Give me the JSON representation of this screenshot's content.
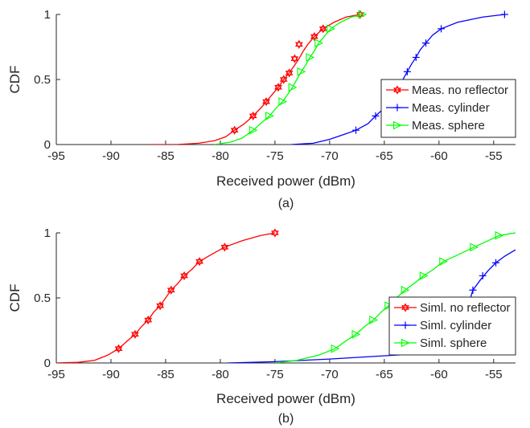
{
  "chart_data": [
    {
      "type": "line",
      "caption": "(a)",
      "xlabel": "Received power (dBm)",
      "ylabel": "CDF",
      "xlim": [
        -95,
        -53
      ],
      "ylim": [
        0,
        1
      ],
      "xticks": [
        -95,
        -90,
        -85,
        -80,
        -75,
        -70,
        -65,
        -60,
        -55
      ],
      "yticks": [
        0,
        0.5,
        1
      ],
      "yticklabels": [
        "0",
        "0.5",
        "1"
      ],
      "grid": false,
      "legend_position": "right",
      "series": [
        {
          "name": "Meas. no reflector",
          "color": "#ff0000",
          "marker": "hexagram",
          "points": [
            [
              -86.5,
              0.0
            ],
            [
              -84.0,
              0.0
            ],
            [
              -82.0,
              0.01
            ],
            [
              -80.5,
              0.03
            ],
            [
              -79.5,
              0.06
            ],
            [
              -78.7,
              0.11
            ],
            [
              -77.8,
              0.16
            ],
            [
              -77.0,
              0.22
            ],
            [
              -76.3,
              0.28
            ],
            [
              -75.8,
              0.33
            ],
            [
              -75.2,
              0.39
            ],
            [
              -74.7,
              0.44
            ],
            [
              -74.2,
              0.5
            ],
            [
              -73.7,
              0.55
            ],
            [
              -73.2,
              0.61
            ],
            [
              -72.8,
              0.66
            ],
            [
              -72.4,
              0.72
            ],
            [
              -72.0,
              0.77
            ],
            [
              -71.4,
              0.83
            ],
            [
              -70.6,
              0.89
            ],
            [
              -69.6,
              0.94
            ],
            [
              -68.5,
              0.98
            ],
            [
              -67.2,
              1.0
            ]
          ],
          "markers": [
            [
              -78.7,
              0.11
            ],
            [
              -77.0,
              0.22
            ],
            [
              -75.8,
              0.33
            ],
            [
              -74.7,
              0.44
            ],
            [
              -74.2,
              0.5
            ],
            [
              -73.7,
              0.55
            ],
            [
              -73.2,
              0.66
            ],
            [
              -72.8,
              0.77
            ],
            [
              -71.4,
              0.83
            ],
            [
              -70.6,
              0.89
            ],
            [
              -67.2,
              1.0
            ]
          ]
        },
        {
          "name": "Meas. cylinder",
          "color": "#0000ff",
          "marker": "plus",
          "points": [
            [
              -73.5,
              0.0
            ],
            [
              -71.5,
              0.01
            ],
            [
              -70.0,
              0.04
            ],
            [
              -68.6,
              0.08
            ],
            [
              -67.6,
              0.11
            ],
            [
              -66.5,
              0.16
            ],
            [
              -65.8,
              0.22
            ],
            [
              -65.0,
              0.28
            ],
            [
              -64.4,
              0.33
            ],
            [
              -64.0,
              0.39
            ],
            [
              -63.6,
              0.45
            ],
            [
              -63.3,
              0.5
            ],
            [
              -62.9,
              0.56
            ],
            [
              -62.5,
              0.62
            ],
            [
              -62.1,
              0.67
            ],
            [
              -61.7,
              0.73
            ],
            [
              -61.2,
              0.78
            ],
            [
              -60.6,
              0.84
            ],
            [
              -59.8,
              0.89
            ],
            [
              -58.3,
              0.94
            ],
            [
              -56.0,
              0.98
            ],
            [
              -54.0,
              1.0
            ]
          ],
          "markers": [
            [
              -67.6,
              0.11
            ],
            [
              -65.8,
              0.22
            ],
            [
              -64.4,
              0.33
            ],
            [
              -63.3,
              0.44
            ],
            [
              -62.9,
              0.56
            ],
            [
              -62.1,
              0.67
            ],
            [
              -61.2,
              0.78
            ],
            [
              -59.8,
              0.89
            ],
            [
              -54.0,
              1.0
            ]
          ]
        },
        {
          "name": "Meas. sphere",
          "color": "#00ff00",
          "marker": "triangle-right",
          "points": [
            [
              -80.5,
              0.0
            ],
            [
              -79.0,
              0.02
            ],
            [
              -78.0,
              0.05
            ],
            [
              -77.0,
              0.11
            ],
            [
              -76.2,
              0.17
            ],
            [
              -75.5,
              0.22
            ],
            [
              -74.9,
              0.28
            ],
            [
              -74.3,
              0.33
            ],
            [
              -73.8,
              0.39
            ],
            [
              -73.4,
              0.44
            ],
            [
              -73.0,
              0.5
            ],
            [
              -72.6,
              0.56
            ],
            [
              -72.2,
              0.61
            ],
            [
              -71.8,
              0.67
            ],
            [
              -71.4,
              0.72
            ],
            [
              -71.0,
              0.78
            ],
            [
              -70.5,
              0.83
            ],
            [
              -69.9,
              0.89
            ],
            [
              -69.0,
              0.94
            ],
            [
              -68.0,
              0.98
            ],
            [
              -67.0,
              1.0
            ]
          ],
          "markers": [
            [
              -77.0,
              0.11
            ],
            [
              -75.5,
              0.22
            ],
            [
              -74.3,
              0.33
            ],
            [
              -73.4,
              0.44
            ],
            [
              -72.6,
              0.56
            ],
            [
              -71.8,
              0.67
            ],
            [
              -71.0,
              0.78
            ],
            [
              -69.9,
              0.89
            ],
            [
              -67.0,
              1.0
            ]
          ]
        }
      ]
    },
    {
      "type": "line",
      "caption": "(b)",
      "xlabel": "Received power (dBm)",
      "ylabel": "CDF",
      "xlim": [
        -95,
        -53
      ],
      "ylim": [
        0,
        1
      ],
      "xticks": [
        -95,
        -90,
        -85,
        -80,
        -75,
        -70,
        -65,
        -60,
        -55
      ],
      "yticks": [
        0,
        0.5,
        1
      ],
      "yticklabels": [
        "0",
        "0.5",
        "1"
      ],
      "grid": false,
      "legend_position": "right",
      "series": [
        {
          "name": "Siml. no reflector",
          "color": "#ff0000",
          "marker": "hexagram",
          "points": [
            [
              -95.0,
              0.0
            ],
            [
              -93.0,
              0.005
            ],
            [
              -91.5,
              0.02
            ],
            [
              -90.3,
              0.06
            ],
            [
              -89.3,
              0.11
            ],
            [
              -88.5,
              0.17
            ],
            [
              -87.8,
              0.22
            ],
            [
              -87.2,
              0.28
            ],
            [
              -86.6,
              0.33
            ],
            [
              -86.1,
              0.39
            ],
            [
              -85.5,
              0.44
            ],
            [
              -85.0,
              0.5
            ],
            [
              -84.5,
              0.56
            ],
            [
              -83.9,
              0.61
            ],
            [
              -83.3,
              0.67
            ],
            [
              -82.6,
              0.72
            ],
            [
              -81.9,
              0.78
            ],
            [
              -80.9,
              0.83
            ],
            [
              -79.6,
              0.89
            ],
            [
              -78.0,
              0.94
            ],
            [
              -76.3,
              0.98
            ],
            [
              -75.0,
              1.0
            ]
          ],
          "markers": [
            [
              -89.3,
              0.11
            ],
            [
              -87.8,
              0.22
            ],
            [
              -86.6,
              0.33
            ],
            [
              -85.5,
              0.44
            ],
            [
              -84.5,
              0.56
            ],
            [
              -83.3,
              0.67
            ],
            [
              -81.9,
              0.78
            ],
            [
              -79.6,
              0.89
            ],
            [
              -75.0,
              1.0
            ]
          ]
        },
        {
          "name": "Siml. cylinder",
          "color": "#0000ff",
          "marker": "plus",
          "points": [
            [
              -79.3,
              0.0
            ],
            [
              -75.0,
              0.01
            ],
            [
              -70.0,
              0.03
            ],
            [
              -66.0,
              0.05
            ],
            [
              -62.0,
              0.07
            ],
            [
              -59.0,
              0.08
            ],
            [
              -58.0,
              0.12
            ],
            [
              -57.6,
              0.3
            ],
            [
              -57.3,
              0.45
            ],
            [
              -56.9,
              0.56
            ],
            [
              -56.2,
              0.64
            ],
            [
              -55.5,
              0.71
            ],
            [
              -54.8,
              0.77
            ],
            [
              -54.0,
              0.82
            ],
            [
              -53.0,
              0.87
            ]
          ],
          "markers": [
            [
              -57.6,
              0.25
            ],
            [
              -57.3,
              0.45
            ],
            [
              -56.9,
              0.56
            ],
            [
              -56.0,
              0.67
            ],
            [
              -54.8,
              0.77
            ]
          ]
        },
        {
          "name": "Siml. sphere",
          "color": "#00ff00",
          "marker": "triangle-right",
          "points": [
            [
              -75.0,
              0.0
            ],
            [
              -73.0,
              0.02
            ],
            [
              -71.0,
              0.06
            ],
            [
              -69.5,
              0.11
            ],
            [
              -68.5,
              0.17
            ],
            [
              -67.6,
              0.22
            ],
            [
              -66.8,
              0.28
            ],
            [
              -66.0,
              0.33
            ],
            [
              -65.3,
              0.39
            ],
            [
              -64.6,
              0.44
            ],
            [
              -63.9,
              0.5
            ],
            [
              -63.1,
              0.56
            ],
            [
              -62.3,
              0.61
            ],
            [
              -61.4,
              0.67
            ],
            [
              -60.5,
              0.72
            ],
            [
              -59.6,
              0.78
            ],
            [
              -58.3,
              0.83
            ],
            [
              -56.8,
              0.89
            ],
            [
              -55.5,
              0.94
            ],
            [
              -54.5,
              0.98
            ],
            [
              -53.0,
              1.0
            ]
          ],
          "markers": [
            [
              -69.5,
              0.11
            ],
            [
              -67.6,
              0.22
            ],
            [
              -66.0,
              0.33
            ],
            [
              -64.6,
              0.44
            ],
            [
              -63.1,
              0.56
            ],
            [
              -61.4,
              0.67
            ],
            [
              -59.6,
              0.78
            ],
            [
              -56.8,
              0.89
            ],
            [
              -54.5,
              0.98
            ]
          ]
        }
      ]
    }
  ]
}
